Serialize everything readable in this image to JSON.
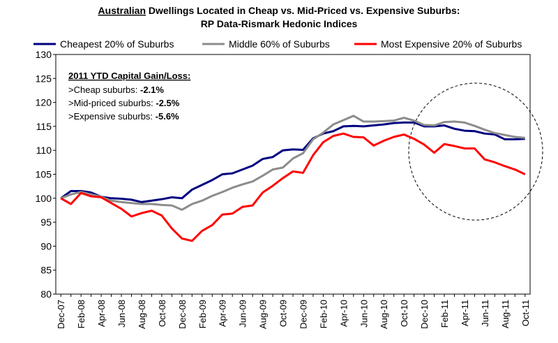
{
  "chart_data": {
    "type": "line",
    "title_lines": [
      [
        "Australian",
        "Dwellings Located in Cheap vs. Mid-Priced vs. Expensive Suburbs:"
      ],
      "RP Data-Rismark Hedonic Indices"
    ],
    "categories": [
      "Dec-07",
      null,
      "Feb-08",
      null,
      "Apr-08",
      null,
      "Jun-08",
      null,
      "Aug-08",
      null,
      "Oct-08",
      null,
      "Dec-08",
      null,
      "Feb-09",
      null,
      "Apr-09",
      null,
      "Jun-09",
      null,
      "Aug-09",
      null,
      "Oct-09",
      null,
      "Dec-09",
      null,
      "Feb-10",
      null,
      "Apr-10",
      null,
      "Jun-10",
      null,
      "Aug-10",
      null,
      "Oct-10",
      null,
      "Dec-10",
      null,
      "Feb-11",
      null,
      "Apr-11",
      null,
      "Jun-11",
      null,
      "Aug-11",
      null,
      "Oct-11"
    ],
    "series": [
      {
        "name": "Cheapest 20% of Suburbs",
        "color": "#000080",
        "values": [
          100,
          101.5,
          101.5,
          101.2,
          100.3,
          100,
          99.9,
          99.7,
          99.2,
          99.5,
          99.8,
          100.2,
          100,
          101.8,
          102.8,
          103.8,
          105,
          105.2,
          106,
          106.8,
          108.2,
          108.6,
          110,
          110.2,
          110.1,
          112.5,
          113.5,
          114,
          115,
          115.1,
          115,
          115.2,
          115.4,
          115.7,
          115.8,
          115.8,
          115,
          115,
          115.2,
          114.5,
          114.1,
          114,
          113.5,
          113.3,
          112.3,
          112.3,
          112.4
        ]
      },
      {
        "name": "Middle 60% of Suburbs",
        "color": "#8c8c8c",
        "values": [
          100,
          100.8,
          101.3,
          100.8,
          100.3,
          99.5,
          99.2,
          99,
          98.8,
          98.8,
          98.6,
          98.5,
          97.6,
          98.8,
          99.5,
          100.5,
          101.3,
          102.2,
          102.9,
          103.5,
          104.7,
          106,
          106.4,
          108.3,
          109.4,
          112.3,
          113.7,
          115.4,
          116.3,
          117.2,
          116,
          116,
          116.1,
          116.2,
          116.8,
          116.2,
          115.3,
          115.2,
          115.9,
          116,
          115.8,
          115.1,
          114.3,
          113.6,
          113.2,
          112.8,
          112.6
        ]
      },
      {
        "name": "Most Expensive 20% of Suburbs",
        "color": "#ff0000",
        "values": [
          100,
          98.8,
          101.1,
          100.4,
          100.2,
          99,
          97.8,
          96.2,
          96.9,
          97.4,
          96.4,
          93.7,
          91.6,
          91.1,
          93.2,
          94.4,
          96.6,
          96.8,
          98.2,
          98.5,
          101.2,
          102.6,
          104.2,
          105.6,
          105.3,
          109,
          111.7,
          113,
          113.5,
          112.8,
          112.7,
          111,
          112,
          112.8,
          113.3,
          112.4,
          111.2,
          109.5,
          111.3,
          110.9,
          110.4,
          110.4,
          108.1,
          107.5,
          106.7,
          106,
          105
        ]
      }
    ],
    "ylim": [
      80,
      130
    ],
    "yticks": [
      80,
      85,
      90,
      95,
      100,
      105,
      110,
      115,
      120,
      125,
      130
    ],
    "grid": false,
    "legend": "top",
    "annotation": {
      "heading": "2011 YTD Capital Gain/Loss:",
      "items": [
        {
          "label": ">Cheap suburbs:",
          "value": "-2.1%"
        },
        {
          "label": ">Mid-priced suburbs:",
          "value": "-2.5%"
        },
        {
          "label": ">Expensive suburbs:",
          "value": "-5.6%"
        }
      ]
    }
  }
}
